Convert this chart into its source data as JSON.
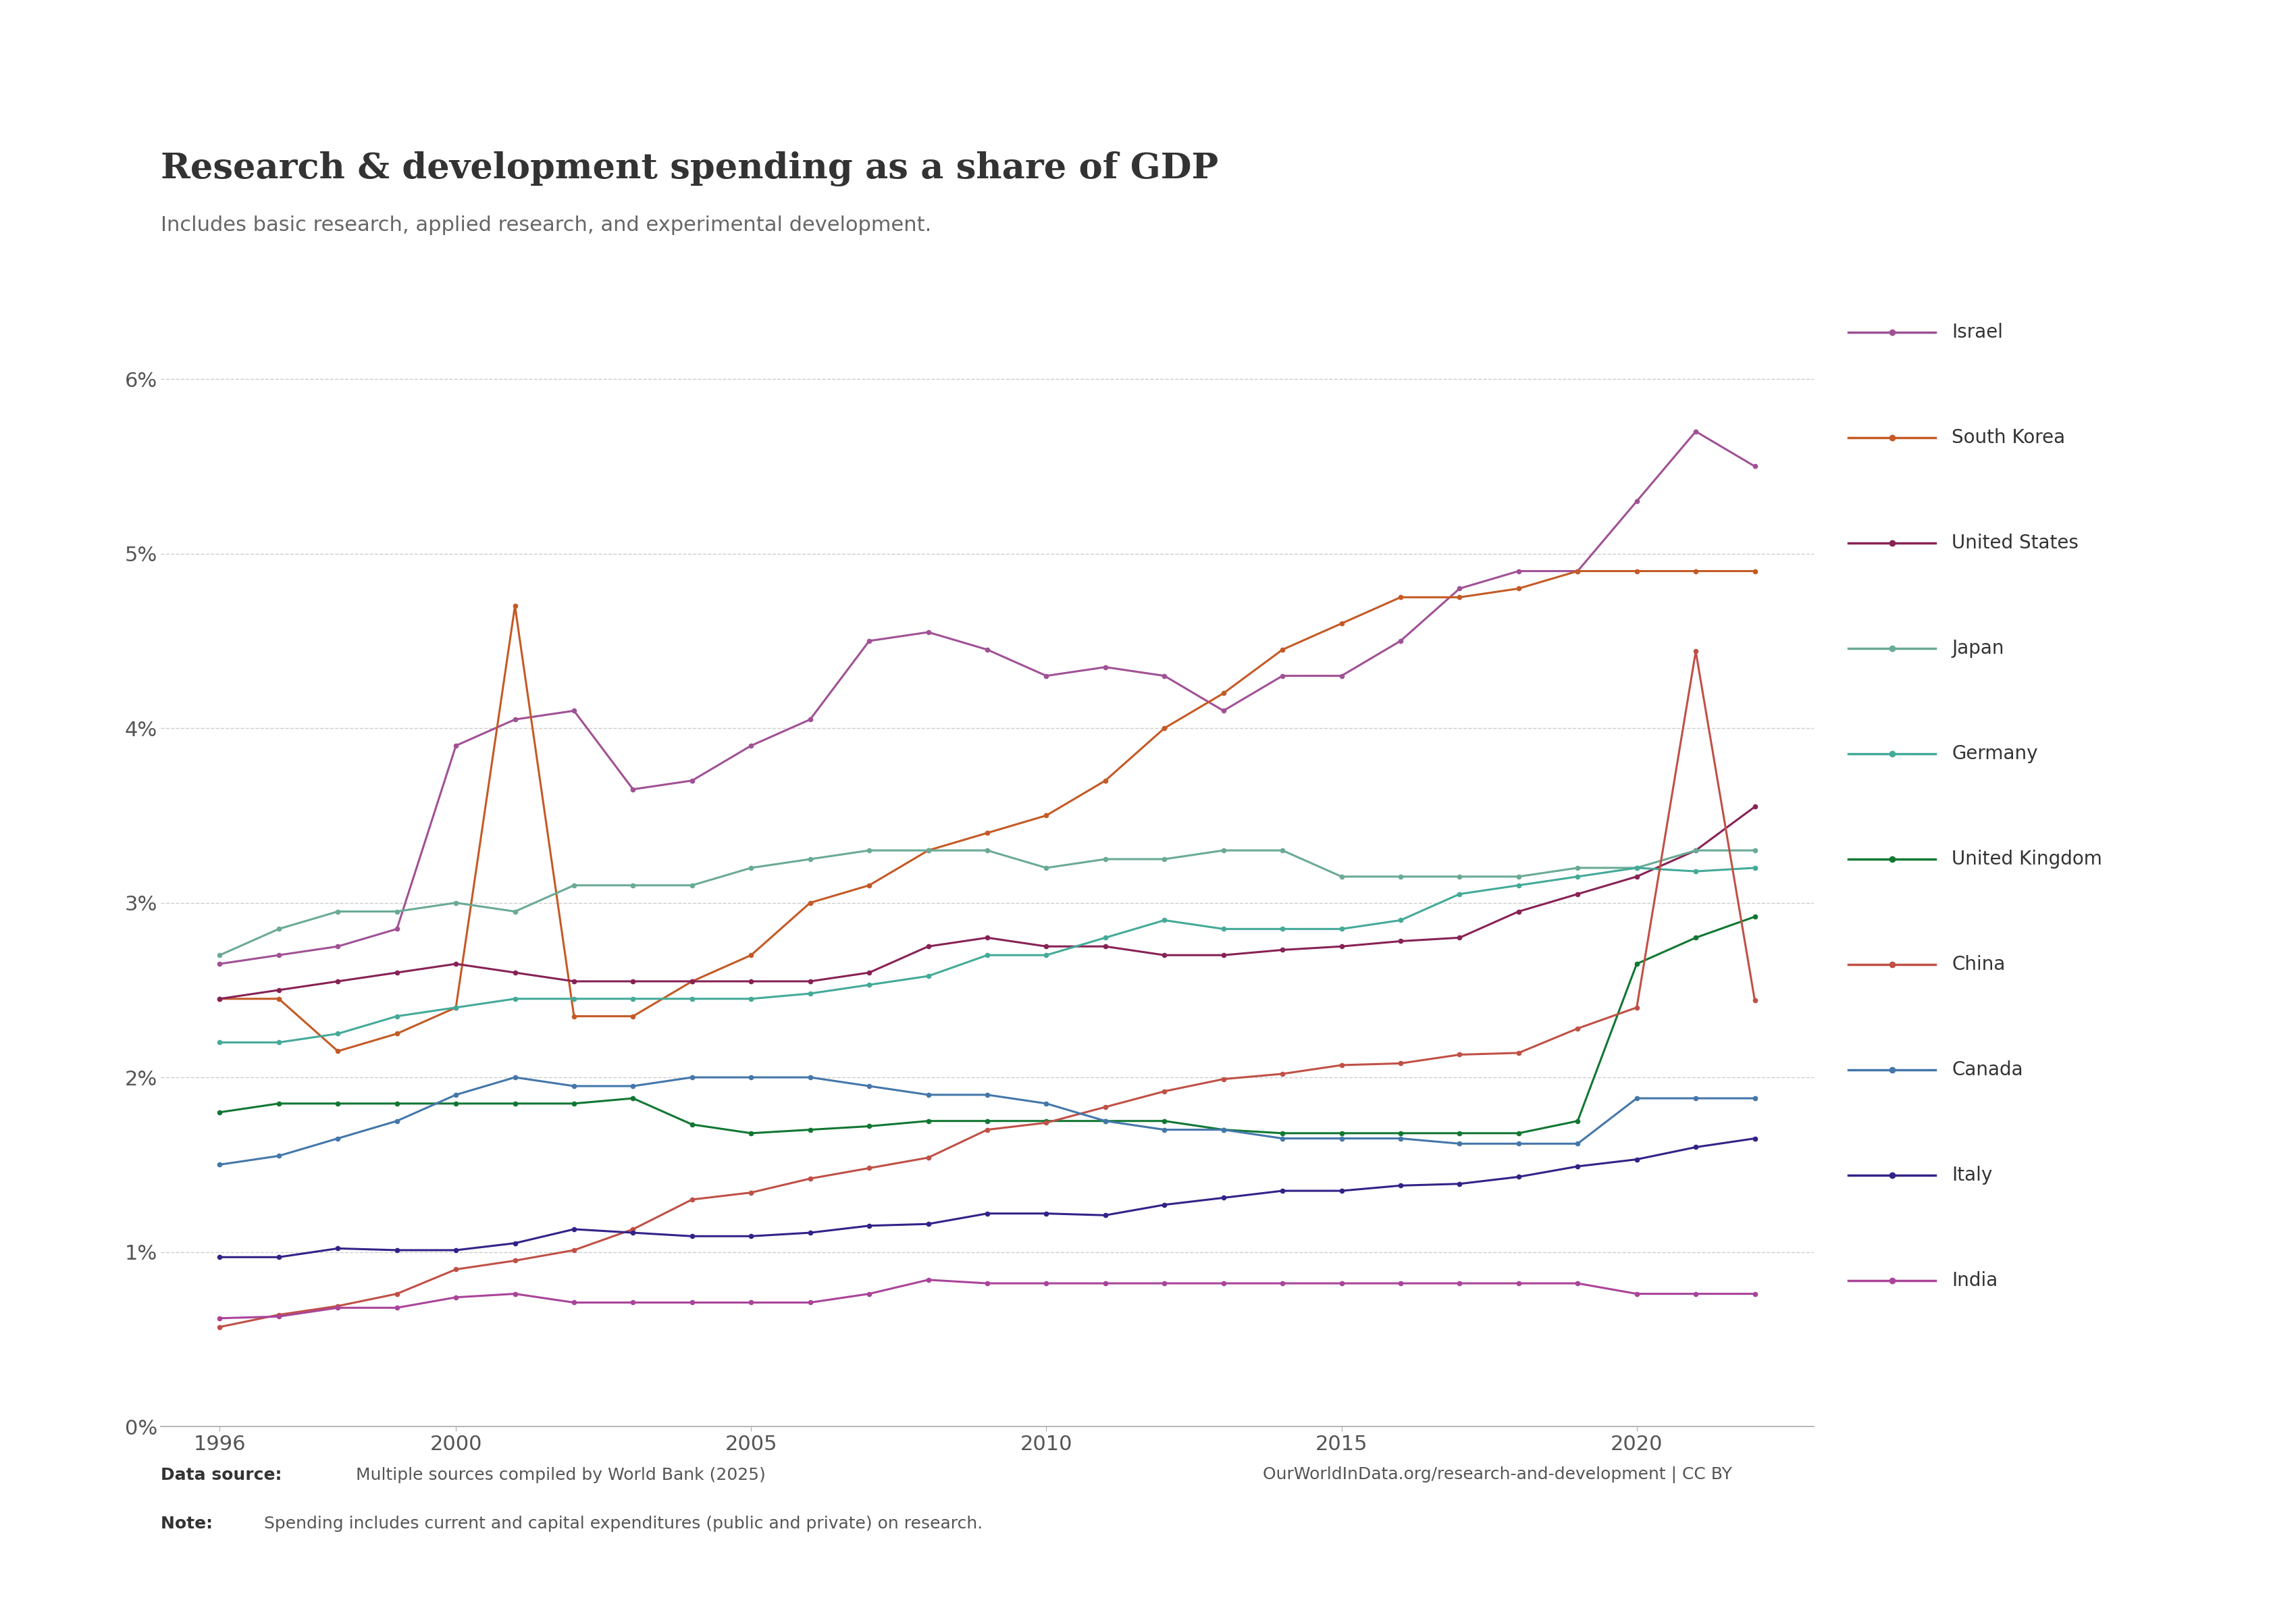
{
  "title": "Research & development spending as a share of GDP",
  "subtitle": "Includes basic research, applied research, and experimental development.",
  "datasource": "Data source: Multiple sources compiled by World Bank (2025)",
  "url": "OurWorldInData.org/research-and-development | CC BY",
  "note": "Note: Spending includes current and capital expenditures (public and private) on research.",
  "ylim": [
    0,
    0.065
  ],
  "yticks": [
    0,
    0.01,
    0.02,
    0.03,
    0.04,
    0.05,
    0.06
  ],
  "ytick_labels": [
    "0%",
    "1%",
    "2%",
    "3%",
    "4%",
    "5%",
    "6%"
  ],
  "xlim": [
    1995,
    2023
  ],
  "xticks": [
    1996,
    2000,
    2005,
    2010,
    2015,
    2020
  ],
  "series": {
    "Israel": {
      "color": "#a05195",
      "years": [
        1996,
        1997,
        1998,
        1999,
        2000,
        2001,
        2002,
        2003,
        2004,
        2005,
        2006,
        2007,
        2008,
        2009,
        2010,
        2011,
        2012,
        2013,
        2014,
        2015,
        2016,
        2017,
        2018,
        2019,
        2020,
        2021,
        2022
      ],
      "values": [
        0.0265,
        0.027,
        0.0275,
        0.0285,
        0.039,
        0.0405,
        0.041,
        0.0365,
        0.037,
        0.039,
        0.0405,
        0.045,
        0.0455,
        0.0445,
        0.043,
        0.0435,
        0.043,
        0.041,
        0.043,
        0.043,
        0.045,
        0.048,
        0.049,
        0.049,
        0.053,
        0.057,
        0.055
      ]
    },
    "South Korea": {
      "color": "#c45a25",
      "years": [
        1996,
        1997,
        1998,
        1999,
        2000,
        2001,
        2002,
        2003,
        2004,
        2005,
        2006,
        2007,
        2008,
        2009,
        2010,
        2011,
        2012,
        2013,
        2014,
        2015,
        2016,
        2017,
        2018,
        2019,
        2020,
        2021,
        2022
      ],
      "values": [
        0.0245,
        0.0245,
        0.0215,
        0.0225,
        0.024,
        0.047,
        0.0235,
        0.0235,
        0.0255,
        0.027,
        0.03,
        0.031,
        0.033,
        0.034,
        0.035,
        0.037,
        0.04,
        0.042,
        0.0445,
        0.046,
        0.0475,
        0.0475,
        0.048,
        0.049,
        0.049,
        0.049,
        0.049
      ]
    },
    "United States": {
      "color": "#882255",
      "years": [
        1996,
        1997,
        1998,
        1999,
        2000,
        2001,
        2002,
        2003,
        2004,
        2005,
        2006,
        2007,
        2008,
        2009,
        2010,
        2011,
        2012,
        2013,
        2014,
        2015,
        2016,
        2017,
        2018,
        2019,
        2020,
        2021,
        2022
      ],
      "values": [
        0.0245,
        0.025,
        0.0255,
        0.026,
        0.0265,
        0.026,
        0.0255,
        0.0255,
        0.0255,
        0.0255,
        0.0255,
        0.026,
        0.0275,
        0.028,
        0.0275,
        0.0275,
        0.027,
        0.027,
        0.0273,
        0.0275,
        0.0278,
        0.028,
        0.0295,
        0.0305,
        0.0315,
        0.033,
        0.0355
      ]
    },
    "Japan": {
      "color": "#6aaa96",
      "years": [
        1996,
        1997,
        1998,
        1999,
        2000,
        2001,
        2002,
        2003,
        2004,
        2005,
        2006,
        2007,
        2008,
        2009,
        2010,
        2011,
        2012,
        2013,
        2014,
        2015,
        2016,
        2017,
        2018,
        2019,
        2020,
        2021,
        2022
      ],
      "values": [
        0.027,
        0.0285,
        0.0295,
        0.0295,
        0.03,
        0.0295,
        0.031,
        0.031,
        0.031,
        0.032,
        0.0325,
        0.033,
        0.033,
        0.033,
        0.032,
        0.0325,
        0.0325,
        0.033,
        0.033,
        0.0315,
        0.0315,
        0.0315,
        0.0315,
        0.032,
        0.032,
        0.033,
        0.033
      ]
    },
    "Germany": {
      "color": "#44aa99",
      "years": [
        1996,
        1997,
        1998,
        1999,
        2000,
        2001,
        2002,
        2003,
        2004,
        2005,
        2006,
        2007,
        2008,
        2009,
        2010,
        2011,
        2012,
        2013,
        2014,
        2015,
        2016,
        2017,
        2018,
        2019,
        2020,
        2021,
        2022
      ],
      "values": [
        0.022,
        0.022,
        0.0225,
        0.0235,
        0.024,
        0.0245,
        0.0245,
        0.0245,
        0.0245,
        0.0245,
        0.0248,
        0.0253,
        0.0258,
        0.027,
        0.027,
        0.028,
        0.029,
        0.0285,
        0.0285,
        0.0285,
        0.029,
        0.0305,
        0.031,
        0.0315,
        0.032,
        0.0318,
        0.032
      ]
    },
    "United Kingdom": {
      "color": "#117733",
      "years": [
        1996,
        1997,
        1998,
        1999,
        2000,
        2001,
        2002,
        2003,
        2004,
        2005,
        2006,
        2007,
        2008,
        2009,
        2010,
        2011,
        2012,
        2013,
        2014,
        2015,
        2016,
        2017,
        2018,
        2019,
        2020,
        2021,
        2022
      ],
      "values": [
        0.018,
        0.0185,
        0.0185,
        0.0185,
        0.0185,
        0.0185,
        0.0185,
        0.0188,
        0.0173,
        0.0168,
        0.017,
        0.0172,
        0.0175,
        0.0175,
        0.0175,
        0.0175,
        0.0175,
        0.017,
        0.0168,
        0.0168,
        0.0168,
        0.0168,
        0.0168,
        0.0175,
        0.0265,
        0.028,
        0.0292
      ]
    },
    "China": {
      "color": "#c05046",
      "years": [
        1996,
        1997,
        1998,
        1999,
        2000,
        2001,
        2002,
        2003,
        2004,
        2005,
        2006,
        2007,
        2008,
        2009,
        2010,
        2011,
        2012,
        2013,
        2014,
        2015,
        2016,
        2017,
        2018,
        2019,
        2020,
        2021,
        2022
      ],
      "values": [
        0.0057,
        0.0064,
        0.0069,
        0.0076,
        0.009,
        0.0095,
        0.0101,
        0.0113,
        0.013,
        0.0134,
        0.0142,
        0.0148,
        0.0154,
        0.017,
        0.0174,
        0.0183,
        0.0192,
        0.0199,
        0.0202,
        0.0207,
        0.0208,
        0.0213,
        0.0214,
        0.0228,
        0.024,
        0.0444,
        0.0244
      ]
    },
    "Canada": {
      "color": "#4477aa",
      "years": [
        1996,
        1997,
        1998,
        1999,
        2000,
        2001,
        2002,
        2003,
        2004,
        2005,
        2006,
        2007,
        2008,
        2009,
        2010,
        2011,
        2012,
        2013,
        2014,
        2015,
        2016,
        2017,
        2018,
        2019,
        2020,
        2021,
        2022
      ],
      "values": [
        0.015,
        0.0155,
        0.0165,
        0.0175,
        0.019,
        0.02,
        0.0195,
        0.0195,
        0.02,
        0.02,
        0.02,
        0.0195,
        0.019,
        0.019,
        0.0185,
        0.0175,
        0.017,
        0.017,
        0.0165,
        0.0165,
        0.0165,
        0.0162,
        0.0162,
        0.0162,
        0.0188,
        0.0188,
        0.0188
      ]
    },
    "Italy": {
      "color": "#332288",
      "years": [
        1996,
        1997,
        1998,
        1999,
        2000,
        2001,
        2002,
        2003,
        2004,
        2005,
        2006,
        2007,
        2008,
        2009,
        2010,
        2011,
        2012,
        2013,
        2014,
        2015,
        2016,
        2017,
        2018,
        2019,
        2020,
        2021,
        2022
      ],
      "values": [
        0.0097,
        0.0097,
        0.0102,
        0.0101,
        0.0101,
        0.0105,
        0.0113,
        0.0111,
        0.0109,
        0.0109,
        0.0111,
        0.0115,
        0.0116,
        0.0122,
        0.0122,
        0.0121,
        0.0127,
        0.0131,
        0.0135,
        0.0135,
        0.0138,
        0.0139,
        0.0143,
        0.0149,
        0.0153,
        0.016,
        0.0165
      ]
    },
    "India": {
      "color": "#aa4499",
      "years": [
        1996,
        1997,
        1998,
        1999,
        2000,
        2001,
        2002,
        2003,
        2004,
        2005,
        2006,
        2007,
        2008,
        2009,
        2010,
        2011,
        2012,
        2013,
        2014,
        2015,
        2016,
        2017,
        2018,
        2019,
        2020,
        2021,
        2022
      ],
      "values": [
        0.0062,
        0.0063,
        0.0068,
        0.0068,
        0.0074,
        0.0076,
        0.0071,
        0.0071,
        0.0071,
        0.0071,
        0.0071,
        0.0076,
        0.0084,
        0.0082,
        0.0082,
        0.0082,
        0.0082,
        0.0082,
        0.0082,
        0.0082,
        0.0082,
        0.0082,
        0.0082,
        0.0082,
        0.0076,
        0.0076,
        0.0076
      ]
    }
  },
  "legend_order": [
    "Israel",
    "South Korea",
    "United States",
    "Japan",
    "Germany",
    "United Kingdom",
    "China",
    "Canada",
    "Italy",
    "India"
  ],
  "owid_box_color": "#1a3a5c",
  "owid_box_text_color": "#ffffff"
}
